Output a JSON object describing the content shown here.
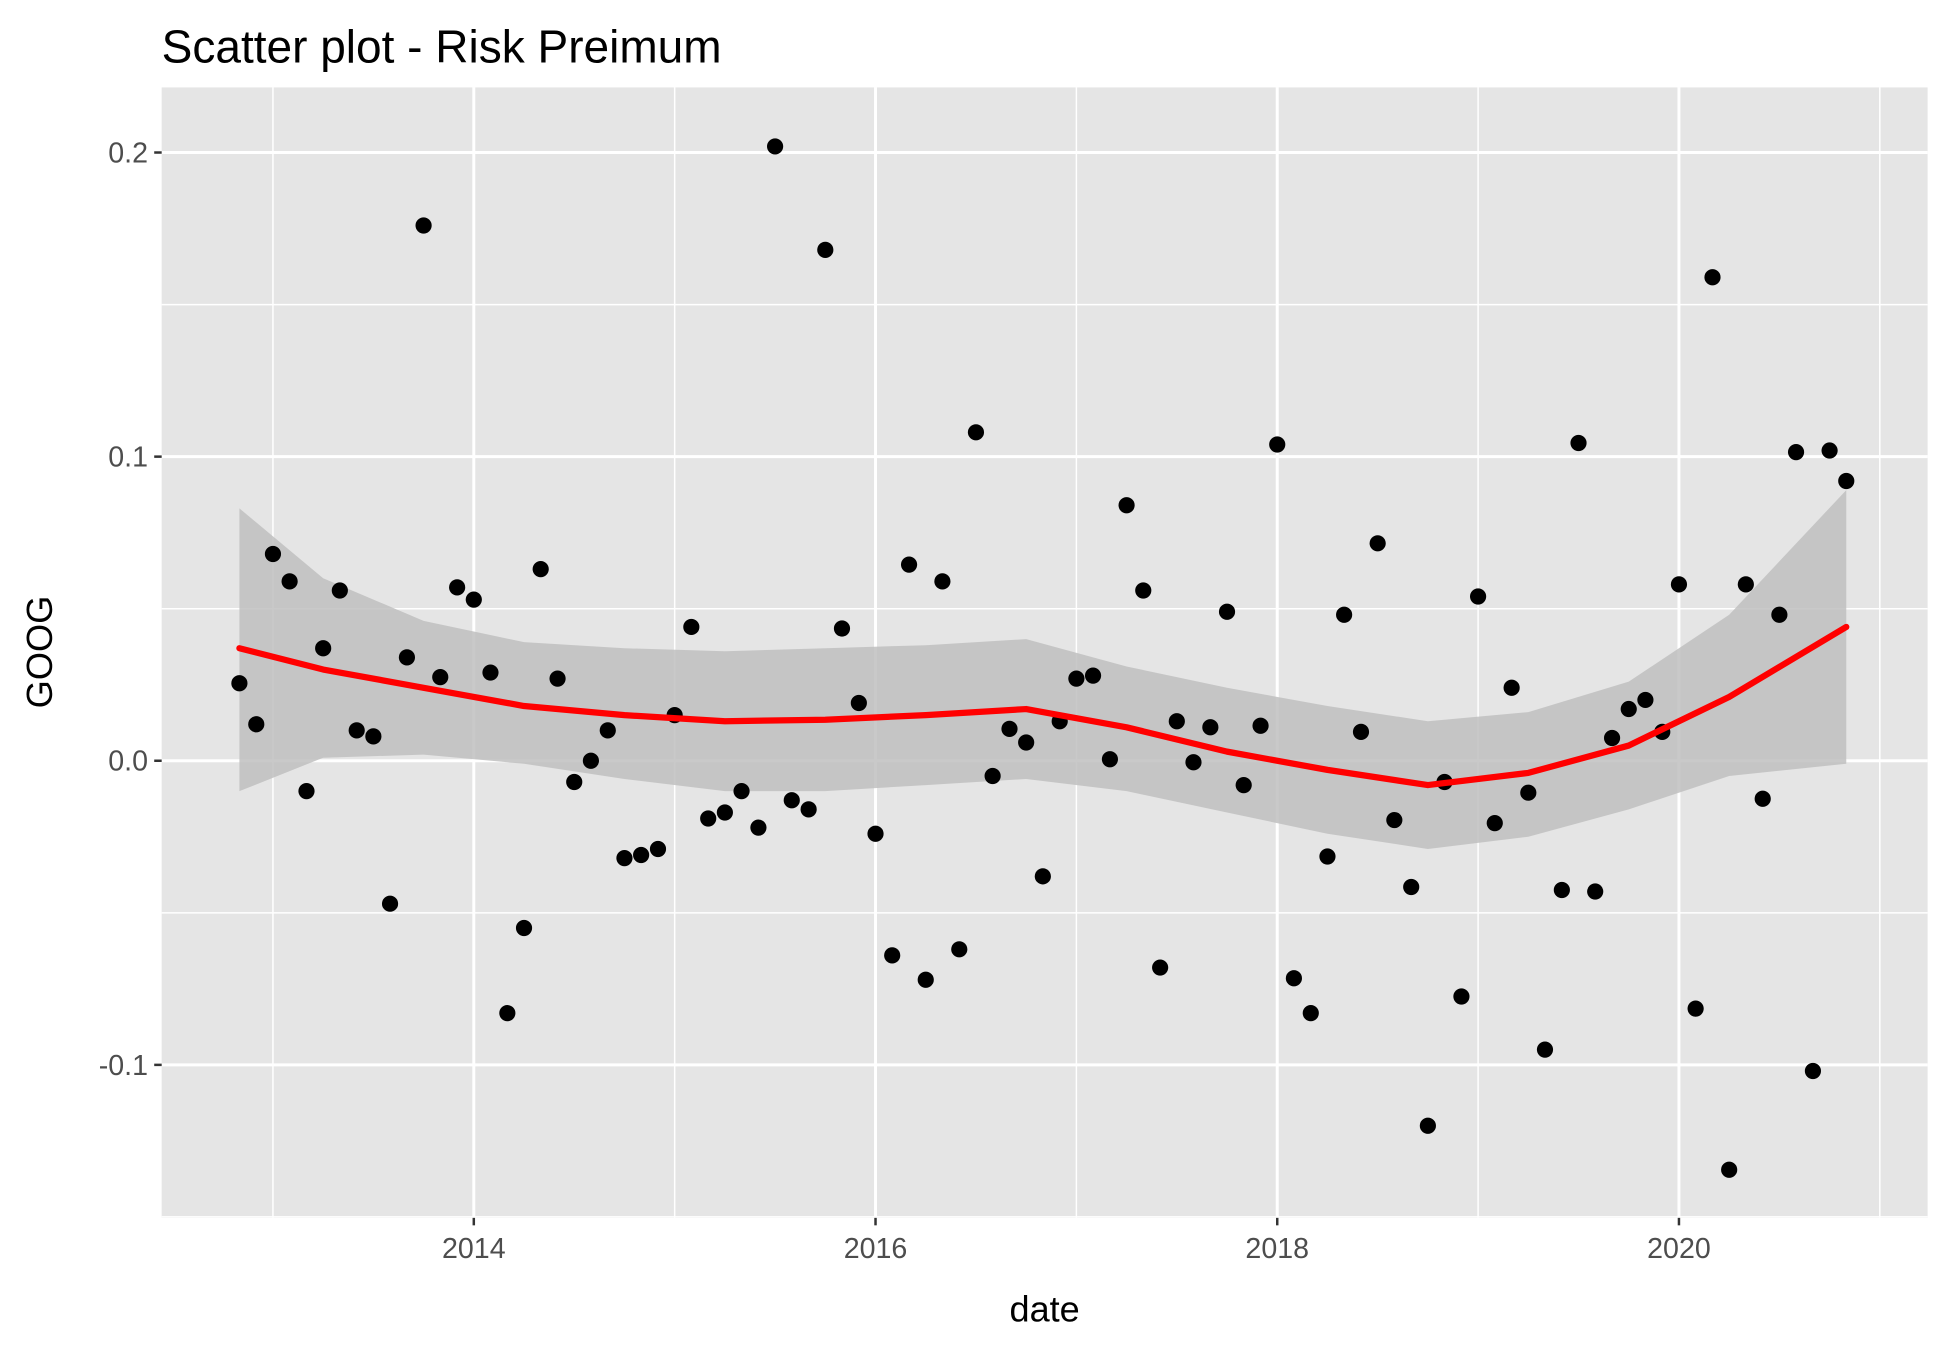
{
  "chart_data": {
    "type": "scatter",
    "title": "Scatter plot - Risk Preimum",
    "x_label": "date",
    "y_label": "GOOG",
    "x": [
      2012.833,
      2012.917,
      2013,
      2013.083,
      2013.167,
      2013.25,
      2013.333,
      2013.417,
      2013.5,
      2013.583,
      2013.667,
      2013.75,
      2013.833,
      2013.917,
      2014,
      2014.083,
      2014.167,
      2014.25,
      2014.333,
      2014.417,
      2014.5,
      2014.583,
      2014.667,
      2014.75,
      2014.833,
      2014.917,
      2015,
      2015.083,
      2015.167,
      2015.25,
      2015.333,
      2015.417,
      2015.5,
      2015.583,
      2015.667,
      2015.75,
      2015.833,
      2015.917,
      2016,
      2016.083,
      2016.167,
      2016.25,
      2016.333,
      2016.417,
      2016.5,
      2016.583,
      2016.667,
      2016.75,
      2016.833,
      2016.917,
      2017,
      2017.083,
      2017.167,
      2017.25,
      2017.333,
      2017.417,
      2017.5,
      2017.583,
      2017.667,
      2017.75,
      2017.833,
      2017.917,
      2018,
      2018.083,
      2018.167,
      2018.25,
      2018.333,
      2018.417,
      2018.5,
      2018.583,
      2018.667,
      2018.75,
      2018.833,
      2018.917,
      2019,
      2019.083,
      2019.167,
      2019.25,
      2019.333,
      2019.417,
      2019.5,
      2019.583,
      2019.667,
      2019.75,
      2019.833,
      2019.917,
      2020,
      2020.083,
      2020.167,
      2020.25,
      2020.333,
      2020.417,
      2020.5,
      2020.583,
      2020.667,
      2020.75,
      2020.833
    ],
    "series": [
      {
        "color": "#000000",
        "values": [
          0.0255,
          0.012,
          0.068,
          0.059,
          -0.01,
          0.037,
          0.056,
          0.01,
          0.008,
          -0.047,
          0.034,
          0.176,
          0.0275,
          0.057,
          0.053,
          0.029,
          -0.083,
          -0.055,
          0.063,
          0.027,
          -0.007,
          0.0,
          0.01,
          -0.032,
          -0.031,
          -0.029,
          0.015,
          0.044,
          -0.019,
          -0.017,
          -0.01,
          -0.022,
          0.202,
          -0.013,
          -0.016,
          0.168,
          0.0435,
          0.019,
          -0.024,
          -0.064,
          0.0645,
          -0.072,
          0.059,
          -0.062,
          0.108,
          -0.005,
          0.0105,
          0.006,
          -0.038,
          0.013,
          0.027,
          0.028,
          0.0005,
          0.084,
          0.056,
          -0.068,
          0.013,
          -0.0005,
          0.011,
          0.049,
          -0.008,
          0.0115,
          0.104,
          -0.0715,
          -0.083,
          -0.0315,
          0.048,
          0.0095,
          0.0715,
          -0.0195,
          -0.0415,
          -0.12,
          -0.007,
          -0.0775,
          0.054,
          -0.0205,
          0.024,
          -0.0105,
          -0.095,
          -0.0425,
          0.1045,
          -0.043,
          0.0075,
          0.017,
          0.02,
          0.0095,
          0.058,
          -0.0815,
          0.159,
          -0.1345,
          0.058,
          -0.0125,
          0.048,
          0.1015,
          -0.102,
          0.102,
          0.092
        ]
      }
    ],
    "smooth": {
      "color": "#ff0000",
      "band_color": "#bfbfbf",
      "x": [
        2012.833,
        2013.25,
        2013.75,
        2014.25,
        2014.75,
        2015.25,
        2015.75,
        2016.25,
        2016.75,
        2017.25,
        2017.75,
        2018.25,
        2018.75,
        2019.25,
        2019.75,
        2020.25,
        2020.833
      ],
      "values": [
        0.037,
        0.03,
        0.024,
        0.018,
        0.015,
        0.013,
        0.0135,
        0.015,
        0.017,
        0.011,
        0.003,
        -0.003,
        -0.008,
        -0.004,
        0.005,
        0.021,
        0.044
      ],
      "upper": [
        0.083,
        0.06,
        0.046,
        0.039,
        0.037,
        0.036,
        0.037,
        0.038,
        0.04,
        0.031,
        0.024,
        0.018,
        0.013,
        0.016,
        0.026,
        0.048,
        0.089
      ],
      "lower": [
        -0.01,
        0.001,
        0.002,
        -0.001,
        -0.006,
        -0.01,
        -0.01,
        -0.008,
        -0.006,
        -0.01,
        -0.017,
        -0.024,
        -0.029,
        -0.025,
        -0.016,
        -0.005,
        -0.001
      ]
    },
    "xlim": [
      2012.446,
      2021.238
    ],
    "ylim": [
      -0.1503,
      0.2214
    ],
    "xticks": [
      2014,
      2016,
      2018,
      2020
    ],
    "yticks": [
      -0.1,
      {
        "value": 0,
        "label": "0.0"
      },
      0.1,
      0.2
    ],
    "grid": true
  }
}
